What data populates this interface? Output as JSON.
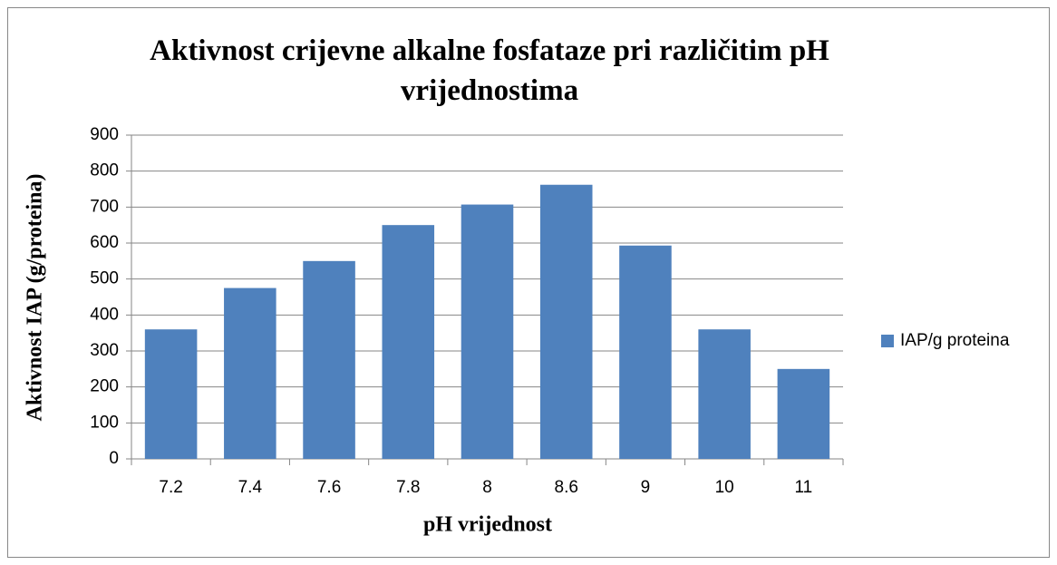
{
  "chart_data": {
    "type": "bar",
    "title": "Aktivnost crijevne alkalne fosfataze pri različitim pH vrijednostima",
    "x_label": "pH vrijednost",
    "y_label": "Aktivnost IAP (g/proteina)",
    "categories": [
      "7.2",
      "7.4",
      "7.6",
      "7.8",
      "8",
      "8.6",
      "9",
      "10",
      "11"
    ],
    "series": [
      {
        "name": "IAP/g proteina",
        "color": "#4f81bd",
        "values": [
          360,
          475,
          550,
          650,
          707,
          762,
          593,
          360,
          250
        ]
      }
    ],
    "ylim": [
      0,
      900
    ],
    "yticks": [
      0,
      100,
      200,
      300,
      400,
      500,
      600,
      700,
      800,
      900
    ],
    "grid": true,
    "legend": "right"
  }
}
